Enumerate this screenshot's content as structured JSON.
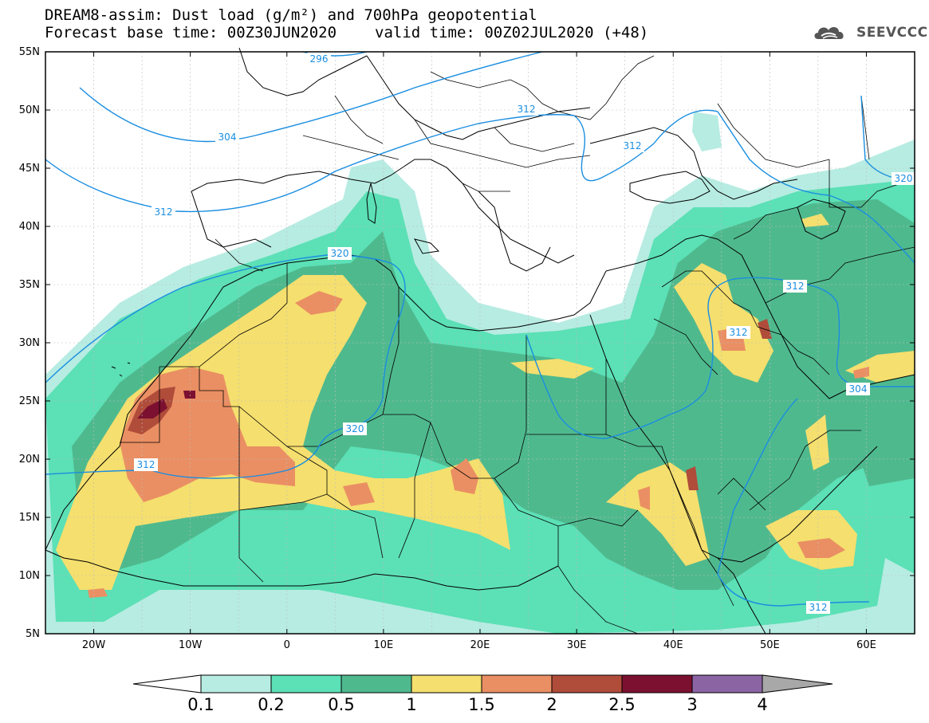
{
  "title": {
    "line1": "DREAM8-assim: Dust load (g/m²) and 700hPa geopotential",
    "line2_base": "Forecast base time: 00Z30JUN2020",
    "line2_valid": "valid time: 00Z02JUL2020 (+48)"
  },
  "logo": {
    "text": "SEEVCCC",
    "icon": "cloud-icon"
  },
  "axes": {
    "lat_labels": [
      "55N",
      "50N",
      "45N",
      "40N",
      "35N",
      "30N",
      "25N",
      "20N",
      "15N",
      "10N",
      "5N"
    ],
    "lon_labels": [
      "20W",
      "10W",
      "0",
      "10E",
      "20E",
      "30E",
      "40E",
      "50E",
      "60E"
    ],
    "lat_range": [
      5,
      55
    ],
    "lon_range": [
      -25,
      65
    ]
  },
  "geopotential_labels": [
    "296",
    "304",
    "312",
    "312",
    "312",
    "320",
    "320",
    "320",
    "312",
    "312",
    "312",
    "304",
    "312",
    "312"
  ],
  "colorbar": {
    "labels": [
      "0.1",
      "0.2",
      "0.5",
      "1",
      "1.5",
      "2",
      "2.5",
      "3",
      "4"
    ],
    "colors": [
      "#b7ece2",
      "#5ce0b6",
      "#4fb98e",
      "#f5df6e",
      "#ea8f63",
      "#b04c3a",
      "#7c1030",
      "#8b65a3"
    ],
    "under_color": "#ffffff",
    "over_color": "#a8a8a8"
  }
}
